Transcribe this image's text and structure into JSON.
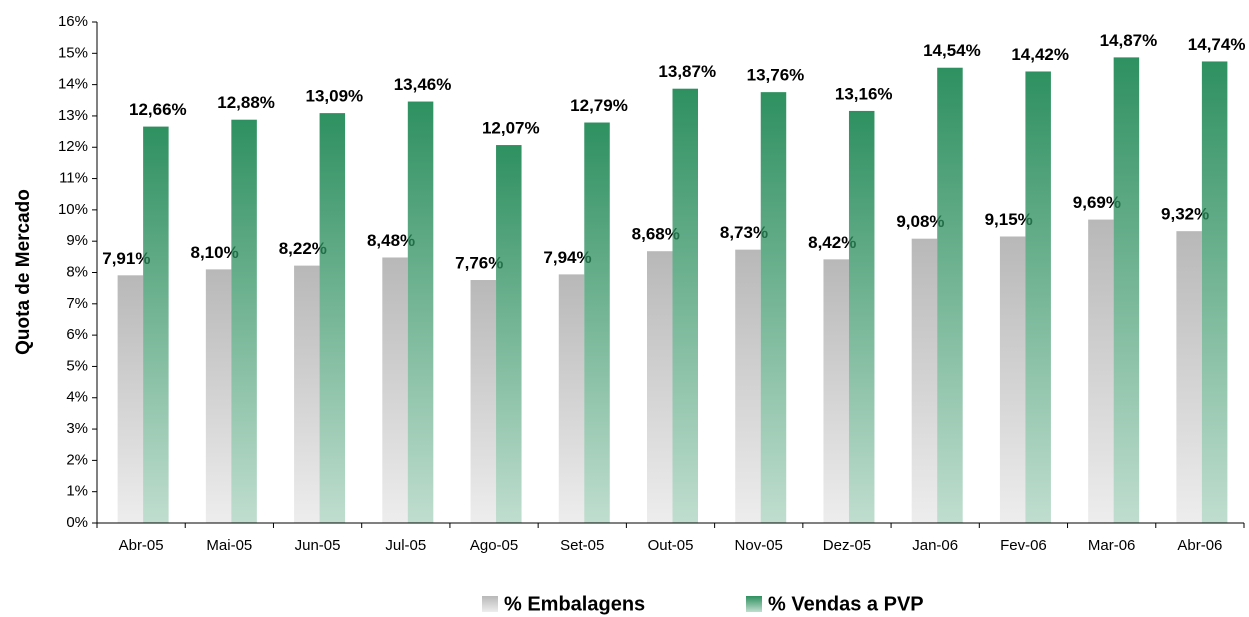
{
  "chart_data": {
    "type": "bar",
    "y_label": "Quota de Mercado",
    "categories": [
      "Abr-05",
      "Mai-05",
      "Jun-05",
      "Jul-05",
      "Ago-05",
      "Set-05",
      "Out-05",
      "Nov-05",
      "Dez-05",
      "Jan-06",
      "Fev-06",
      "Mar-06",
      "Abr-06"
    ],
    "series": [
      {
        "name": "% Embalagens",
        "color": "#b8b8b8",
        "values": [
          7.91,
          8.1,
          8.22,
          8.48,
          7.76,
          7.94,
          8.68,
          8.73,
          8.42,
          9.08,
          9.15,
          9.69,
          9.32
        ],
        "value_labels": [
          "7,91%",
          "8,10%",
          "8,22%",
          "8,48%",
          "7,76%",
          "7,94%",
          "8,68%",
          "8,73%",
          "8,42%",
          "9,08%",
          "9,15%",
          "9,69%",
          "9,32%"
        ]
      },
      {
        "name": "% Vendas a PVP",
        "color": "#2e9060",
        "values": [
          12.66,
          12.88,
          13.09,
          13.46,
          12.07,
          12.79,
          13.87,
          13.76,
          13.16,
          14.54,
          14.42,
          14.87,
          14.74
        ],
        "value_labels": [
          "12,66%",
          "12,88%",
          "13,09%",
          "13,46%",
          "12,07%",
          "12,79%",
          "13,87%",
          "13,76%",
          "13,16%",
          "14,54%",
          "14,42%",
          "14,87%",
          "14,74%"
        ]
      }
    ],
    "ylim": [
      0,
      16
    ],
    "yticks": [
      {
        "value": 0,
        "label": "0%"
      },
      {
        "value": 1,
        "label": "1%"
      },
      {
        "value": 2,
        "label": "2%"
      },
      {
        "value": 3,
        "label": "3%"
      },
      {
        "value": 4,
        "label": "4%"
      },
      {
        "value": 5,
        "label": "5%"
      },
      {
        "value": 6,
        "label": "6%"
      },
      {
        "value": 7,
        "label": "7%"
      },
      {
        "value": 8,
        "label": "8%"
      },
      {
        "value": 9,
        "label": "9%"
      },
      {
        "value": 10,
        "label": "10%"
      },
      {
        "value": 11,
        "label": "11%"
      },
      {
        "value": 12,
        "label": "12%"
      },
      {
        "value": 13,
        "label": "13%"
      },
      {
        "value": 14,
        "label": "14%"
      },
      {
        "value": 15,
        "label": "15%"
      },
      {
        "value": 16,
        "label": "16%"
      }
    ],
    "legend": "bottom"
  }
}
